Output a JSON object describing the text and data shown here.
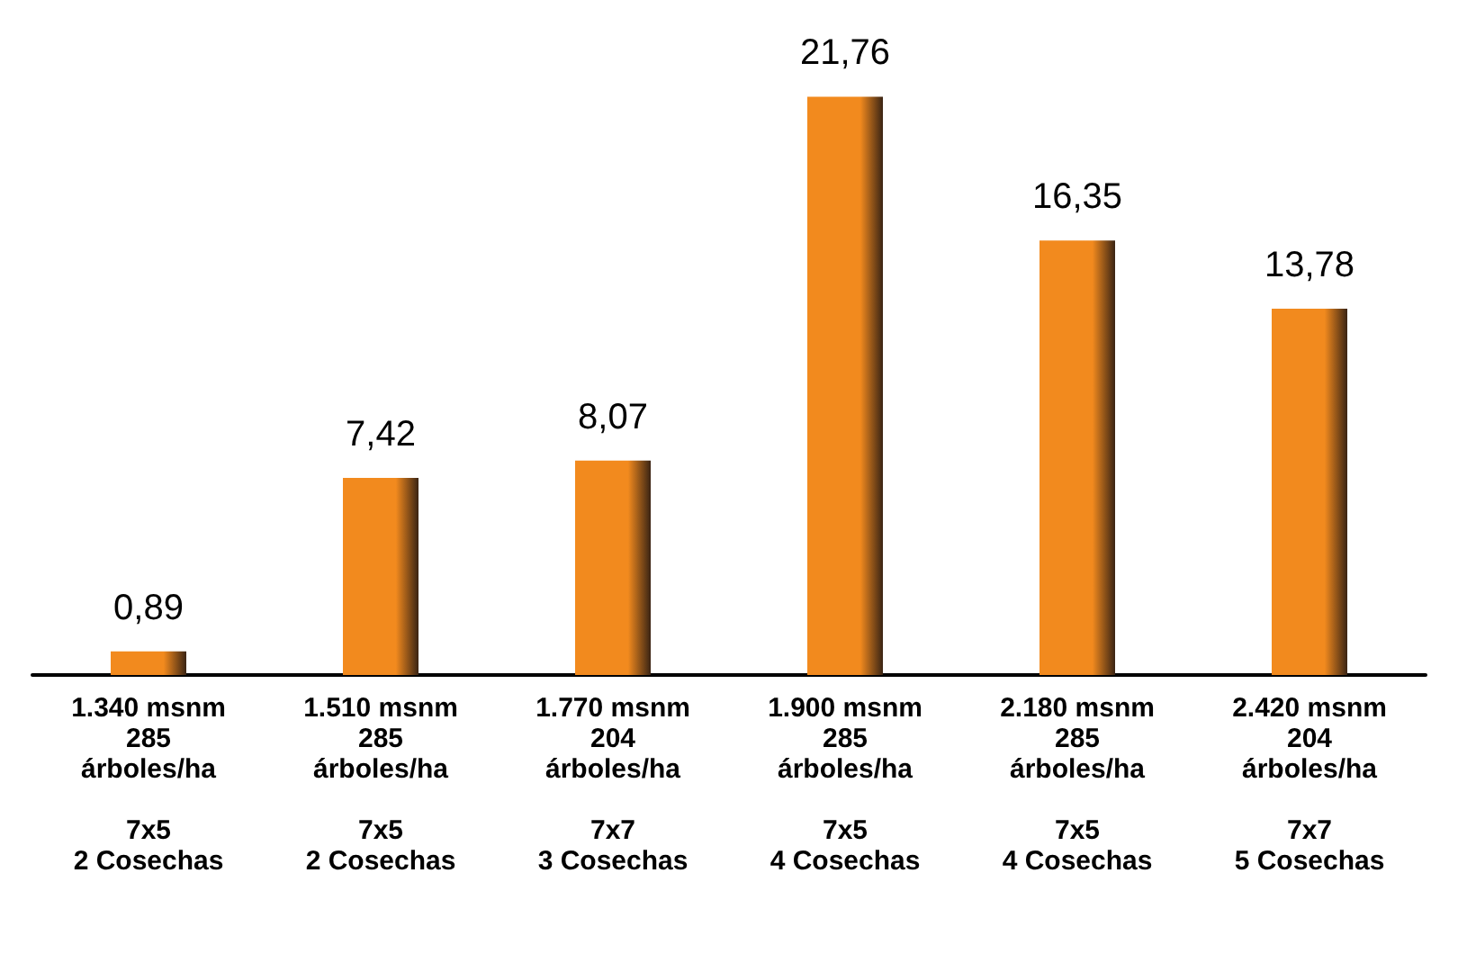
{
  "chart_data": {
    "type": "bar",
    "categories": [
      "1.340 msnm\n285\nárboles/ha\n\n7x5\n2 Cosechas",
      "1.510 msnm\n285\nárboles/ha\n\n7x5\n2 Cosechas",
      "1.770 msnm\n204\nárboles/ha\n\n7x7\n3 Cosechas",
      "1.900 msnm\n285\nárboles/ha\n\n7x5\n4 Cosechas",
      "2.180 msnm\n285\nárboles/ha\n\n7x5\n4 Cosechas",
      "2.420 msnm\n204\nárboles/ha\n\n7x7\n5 Cosechas"
    ],
    "values": [
      0.89,
      7.42,
      8.07,
      21.76,
      16.35,
      13.78
    ],
    "value_labels": [
      "0,89",
      "7,42",
      "8,07",
      "21,76",
      "16,35",
      "13,78"
    ],
    "color": "#f28a1e",
    "tick_labels": "x"
  }
}
